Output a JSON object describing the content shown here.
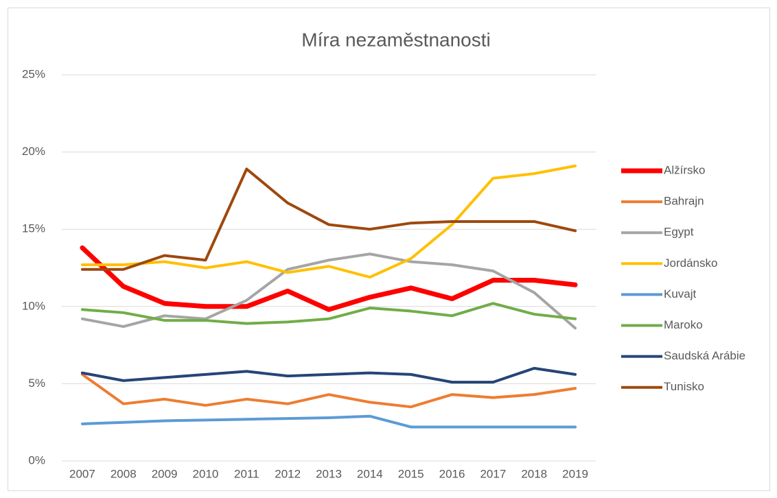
{
  "chart_data": {
    "type": "line",
    "title": "Míra nezaměstnanosti",
    "categories": [
      "2007",
      "2008",
      "2009",
      "2010",
      "2011",
      "2012",
      "2013",
      "2014",
      "2015",
      "2016",
      "2017",
      "2018",
      "2019"
    ],
    "ylim": [
      0,
      25
    ],
    "yticks": [
      {
        "value": 0,
        "label": "0%"
      },
      {
        "value": 5,
        "label": "5%"
      },
      {
        "value": 10,
        "label": "10%"
      },
      {
        "value": 15,
        "label": "15%"
      },
      {
        "value": 20,
        "label": "20%"
      },
      {
        "value": 25,
        "label": "25%"
      }
    ],
    "grid": true,
    "legend": "right",
    "series": [
      {
        "name": "Alžírsko",
        "color": "#ff0000",
        "values": [
          13.8,
          11.3,
          10.2,
          10.0,
          10.0,
          11.0,
          9.8,
          10.6,
          11.2,
          10.5,
          11.7,
          11.7,
          11.4
        ]
      },
      {
        "name": "Bahrajn",
        "color": "#ed7d31",
        "values": [
          5.6,
          3.7,
          4.0,
          3.6,
          4.0,
          3.7,
          4.3,
          3.8,
          3.5,
          4.3,
          4.1,
          4.3,
          4.7
        ]
      },
      {
        "name": "Egypt",
        "color": "#a5a5a5",
        "values": [
          9.2,
          8.7,
          9.4,
          9.2,
          10.4,
          12.4,
          13.0,
          13.4,
          12.9,
          12.7,
          12.3,
          10.9,
          8.6
        ]
      },
      {
        "name": "Jordánsko",
        "color": "#ffc000",
        "values": [
          12.7,
          12.7,
          12.9,
          12.5,
          12.9,
          12.2,
          12.6,
          11.9,
          13.1,
          15.3,
          18.3,
          18.6,
          19.1
        ]
      },
      {
        "name": "Kuvajt",
        "color": "#5b9bd5",
        "values": [
          2.4,
          2.5,
          2.6,
          2.65,
          2.7,
          2.75,
          2.8,
          2.9,
          2.2,
          2.2,
          2.2,
          2.2,
          2.2
        ]
      },
      {
        "name": "Maroko",
        "color": "#70ad47",
        "values": [
          9.8,
          9.6,
          9.1,
          9.1,
          8.9,
          9.0,
          9.2,
          9.9,
          9.7,
          9.4,
          10.2,
          9.5,
          9.2
        ]
      },
      {
        "name": "Saudská Arábie",
        "color": "#264478",
        "values": [
          5.7,
          5.2,
          5.4,
          5.6,
          5.8,
          5.5,
          5.6,
          5.7,
          5.6,
          5.1,
          5.1,
          6.0,
          5.6
        ]
      },
      {
        "name": "Tunisko",
        "color": "#9e480e",
        "values": [
          12.4,
          12.4,
          13.3,
          13.0,
          18.9,
          16.7,
          15.3,
          15.0,
          15.4,
          15.5,
          15.5,
          15.5,
          14.9
        ]
      }
    ]
  }
}
